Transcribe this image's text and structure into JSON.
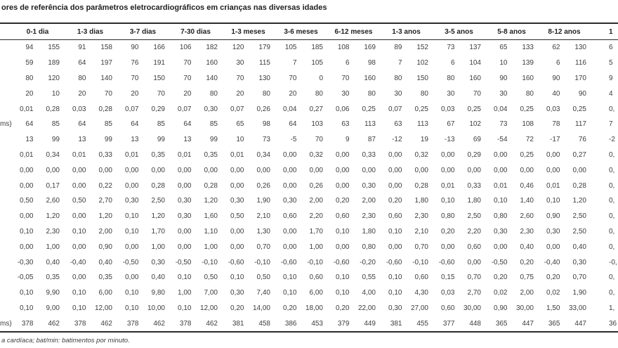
{
  "page": {
    "title": "ores de referência dos parâmetros eletrocardiográficos em crianças nas diversas idades",
    "footnote": "a cardíaca; bat/min: batimentos por minuto."
  },
  "colors": {
    "text": "#3d3d3d",
    "rule": "#2b2b2b",
    "background": "#ffffff"
  },
  "table": {
    "age_headers": [
      "0-1 dia",
      "1-3 dias",
      "3-7 dias",
      "7-30 dias",
      "1-3 meses",
      "3-6 meses",
      "6-12 meses",
      "1-3 anos",
      "3-5 anos",
      "5-8 anos",
      "8-12 anos"
    ],
    "cut_header_fragment": "1",
    "rows": [
      {
        "label": "",
        "values": [
          "94",
          "155",
          "91",
          "158",
          "90",
          "166",
          "106",
          "182",
          "120",
          "179",
          "105",
          "185",
          "108",
          "169",
          "89",
          "152",
          "73",
          "137",
          "65",
          "133",
          "62",
          "130",
          "6"
        ]
      },
      {
        "label": "",
        "values": [
          "59",
          "189",
          "64",
          "197",
          "76",
          "191",
          "70",
          "160",
          "30",
          "115",
          "7",
          "105",
          "6",
          "98",
          "7",
          "102",
          "6",
          "104",
          "10",
          "139",
          "6",
          "116",
          "5"
        ]
      },
      {
        "label": "",
        "values": [
          "80",
          "120",
          "80",
          "140",
          "70",
          "150",
          "70",
          "140",
          "70",
          "130",
          "70",
          "0",
          "70",
          "160",
          "80",
          "150",
          "80",
          "160",
          "90",
          "160",
          "90",
          "170",
          "9"
        ]
      },
      {
        "label": "",
        "values": [
          "20",
          "10",
          "20",
          "70",
          "20",
          "70",
          "20",
          "80",
          "20",
          "80",
          "20",
          "80",
          "30",
          "80",
          "30",
          "80",
          "30",
          "70",
          "30",
          "80",
          "40",
          "90",
          "4"
        ]
      },
      {
        "label": "",
        "values": [
          "0,01",
          "0,28",
          "0,03",
          "0,28",
          "0,07",
          "0,29",
          "0,07",
          "0,30",
          "0,07",
          "0,26",
          "0,04",
          "0,27",
          "0,06",
          "0,25",
          "0,07",
          "0,25",
          "0,03",
          "0,25",
          "0,04",
          "0,25",
          "0,03",
          "0,25",
          "0,"
        ]
      },
      {
        "label": "ms)",
        "values": [
          "64",
          "85",
          "64",
          "85",
          "64",
          "85",
          "64",
          "85",
          "65",
          "98",
          "64",
          "103",
          "63",
          "113",
          "63",
          "113",
          "67",
          "102",
          "73",
          "108",
          "78",
          "117",
          "7"
        ]
      },
      {
        "label": "",
        "values": [
          "13",
          "99",
          "13",
          "99",
          "13",
          "99",
          "13",
          "99",
          "10",
          "73",
          "-5",
          "70",
          "9",
          "87",
          "-12",
          "19",
          "-13",
          "69",
          "-54",
          "72",
          "-17",
          "76",
          "-2"
        ]
      },
      {
        "label": "",
        "values": [
          "0,01",
          "0,34",
          "0,01",
          "0,33",
          "0,01",
          "0,35",
          "0,01",
          "0,35",
          "0,01",
          "0,34",
          "0,00",
          "0,32",
          "0,00",
          "0,33",
          "0,00",
          "0,32",
          "0,00",
          "0,29",
          "0,00",
          "0,25",
          "0,00",
          "0,27",
          "0,"
        ]
      },
      {
        "label": "",
        "values": [
          "0,00",
          "0,00",
          "0,00",
          "0,00",
          "0,00",
          "0,00",
          "0,00",
          "0,00",
          "0,00",
          "0,00",
          "0,00",
          "0,00",
          "0,00",
          "0,00",
          "0,00",
          "0,00",
          "0,00",
          "0,00",
          "0,00",
          "0,00",
          "0,00",
          "0,00",
          "0,"
        ]
      },
      {
        "label": "",
        "values": [
          "0,00",
          "0,17",
          "0,00",
          "0,22",
          "0,00",
          "0,28",
          "0,00",
          "0,28",
          "0,00",
          "0,26",
          "0,00",
          "0,26",
          "0,00",
          "0,30",
          "0,00",
          "0,28",
          "0,01",
          "0,33",
          "0,01",
          "0,46",
          "0,01",
          "0,28",
          "0,"
        ]
      },
      {
        "label": "",
        "values": [
          "0,50",
          "2,60",
          "0,50",
          "2,70",
          "0,30",
          "2,50",
          "0,30",
          "1,20",
          "0,30",
          "1,90",
          "0,30",
          "2,00",
          "0,20",
          "2,00",
          "0,20",
          "1,80",
          "0,10",
          "1,80",
          "0,10",
          "1,40",
          "0,10",
          "1,20",
          "0,"
        ]
      },
      {
        "label": "",
        "values": [
          "0,00",
          "1,20",
          "0,00",
          "1,20",
          "0,10",
          "1,20",
          "0,30",
          "1,60",
          "0,50",
          "2,10",
          "0,60",
          "2,20",
          "0,60",
          "2,30",
          "0,60",
          "2,30",
          "0,80",
          "2,50",
          "0,80",
          "2,60",
          "0,90",
          "2,50",
          "0,"
        ]
      },
      {
        "label": "",
        "values": [
          "0,10",
          "2,30",
          "0,10",
          "2,00",
          "0,10",
          "1,70",
          "0,00",
          "1,10",
          "0,00",
          "1,30",
          "0,00",
          "1,70",
          "0,10",
          "1,80",
          "0,10",
          "2,10",
          "0,20",
          "2,20",
          "0,30",
          "2,30",
          "0,30",
          "2,50",
          "0,"
        ]
      },
      {
        "label": "",
        "values": [
          "0,00",
          "1,00",
          "0,00",
          "0,90",
          "0,00",
          "1,00",
          "0,00",
          "1,00",
          "0,00",
          "0,70",
          "0,00",
          "1,00",
          "0,00",
          "0,80",
          "0,00",
          "0,70",
          "0,00",
          "0,60",
          "0,00",
          "0,40",
          "0,00",
          "0,40",
          "0,"
        ]
      },
      {
        "label": "",
        "values": [
          "-0,30",
          "0,40",
          "-0,40",
          "0,40",
          "-0,50",
          "0,30",
          "-0,50",
          "-0,10",
          "-0,60",
          "-0,10",
          "-0,60",
          "-0,10",
          "-0,60",
          "-0,20",
          "-0,60",
          "-0,10",
          "-0,60",
          "0,00",
          "-0,50",
          "0,20",
          "-0,40",
          "0,30",
          "-0,"
        ]
      },
      {
        "label": "",
        "values": [
          "-0,05",
          "0,35",
          "0,00",
          "0,35",
          "0,00",
          "0,40",
          "0,10",
          "0,50",
          "0,10",
          "0,50",
          "0,10",
          "0,60",
          "0,10",
          "0,55",
          "0,10",
          "0,60",
          "0,15",
          "0,70",
          "0,20",
          "0,75",
          "0,20",
          "0,70",
          "0,"
        ]
      },
      {
        "label": "",
        "values": [
          "0,10",
          "9,90",
          "0,10",
          "6,00",
          "0,10",
          "9,80",
          "1,00",
          "7,00",
          "0,30",
          "7,40",
          "0,10",
          "6,00",
          "0,10",
          "4,00",
          "0,10",
          "4,30",
          "0,03",
          "2,70",
          "0,02",
          "2,00",
          "0,02",
          "1,90",
          "0,"
        ]
      },
      {
        "label": "",
        "values": [
          "0,10",
          "9,00",
          "0,10",
          "12,00",
          "0,10",
          "10,00",
          "0,10",
          "12,00",
          "0,20",
          "14,00",
          "0,20",
          "18,00",
          "0,20",
          "22,00",
          "0,30",
          "27,00",
          "0,60",
          "30,00",
          "0,90",
          "30,00",
          "1,50",
          "33,00",
          "1,"
        ]
      },
      {
        "label": "ms)",
        "values": [
          "378",
          "462",
          "378",
          "462",
          "378",
          "462",
          "378",
          "462",
          "381",
          "458",
          "386",
          "453",
          "379",
          "449",
          "381",
          "455",
          "377",
          "448",
          "365",
          "447",
          "365",
          "447",
          "36"
        ]
      }
    ]
  }
}
